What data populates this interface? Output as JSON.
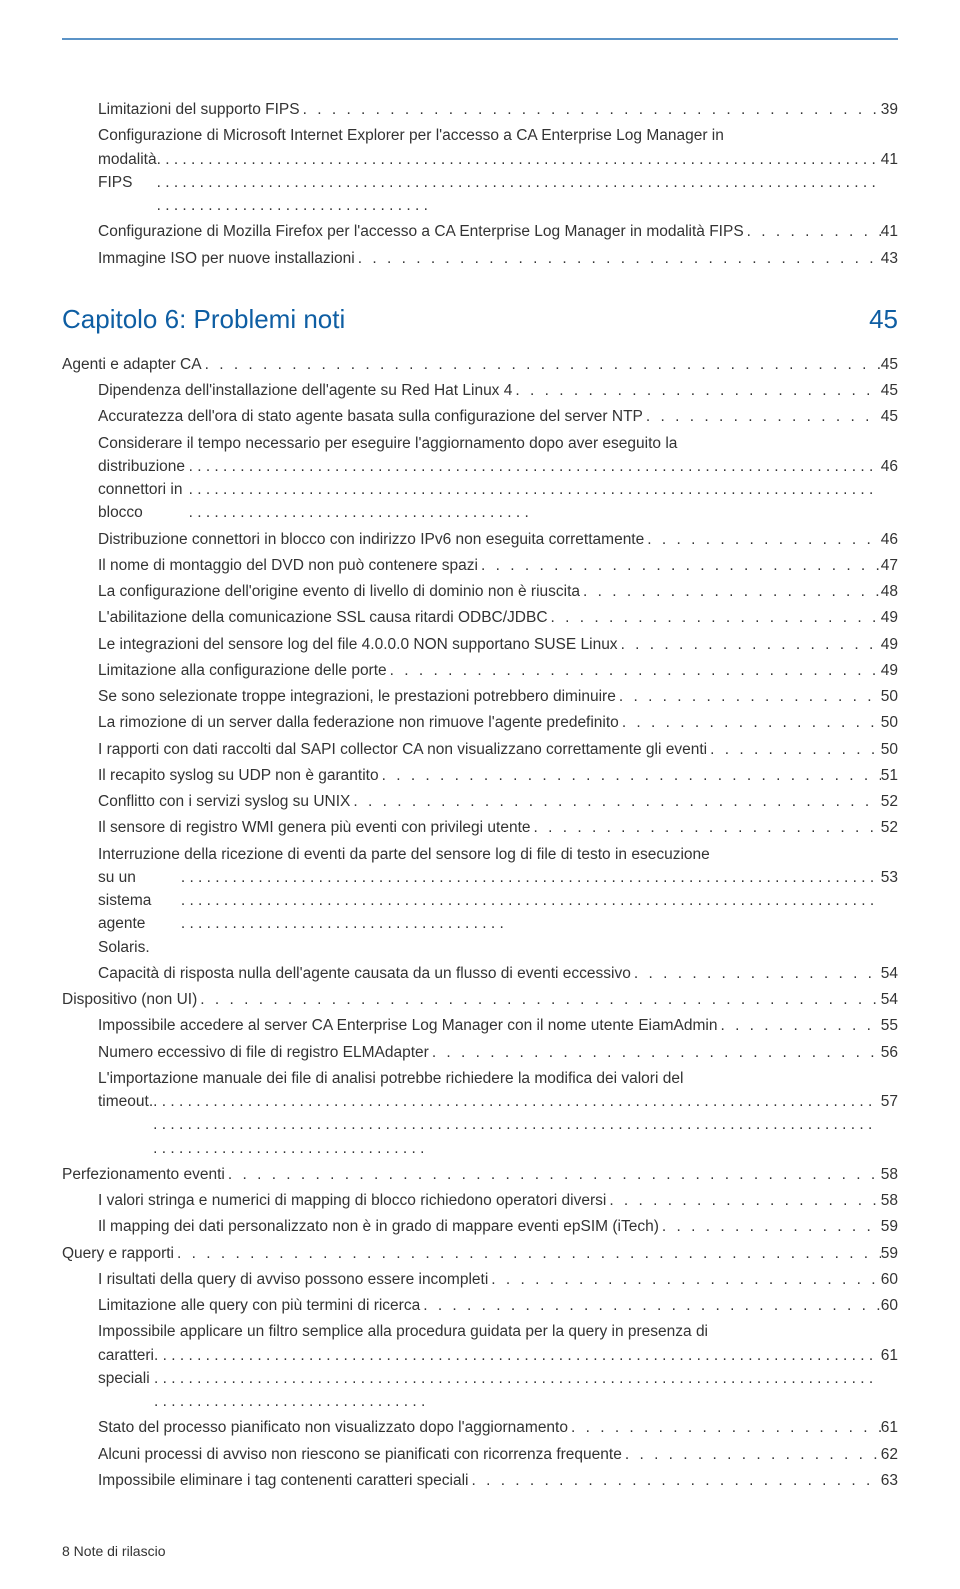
{
  "colors": {
    "topRule": "#5b93c7",
    "chapter": "#0e5ea3",
    "text": "#333333",
    "background": "#ffffff"
  },
  "typography": {
    "body_fontsize_pt": 11.5,
    "chapter_fontsize_pt": 19,
    "footer_fontsize_pt": 10.5,
    "font_family": "Segoe UI / Verdana"
  },
  "preEntries": [
    {
      "level": 2,
      "label": "Limitazioni del supporto FIPS",
      "page": "39"
    },
    {
      "level": 2,
      "wrap": true,
      "line1": "Configurazione di Microsoft Internet Explorer per l'accesso a CA Enterprise Log Manager in",
      "line2": "modalità FIPS",
      "page": "41"
    },
    {
      "level": 2,
      "label": "Configurazione di Mozilla Firefox per l'accesso a CA Enterprise Log Manager in modalità FIPS",
      "page": "41"
    },
    {
      "level": 2,
      "label": "Immagine ISO per nuove installazioni",
      "page": "43"
    }
  ],
  "chapter": {
    "title": "Capitolo 6: Problemi noti",
    "page": "45"
  },
  "entries": [
    {
      "level": 1,
      "label": "Agenti e adapter CA",
      "page": "45"
    },
    {
      "level": 2,
      "label": "Dipendenza dell'installazione dell'agente su Red Hat Linux 4",
      "page": "45"
    },
    {
      "level": 2,
      "label": "Accuratezza dell'ora di stato agente basata sulla configurazione del server NTP",
      "page": "45"
    },
    {
      "level": 2,
      "wrap": true,
      "line1": "Considerare il tempo necessario per eseguire l'aggiornamento dopo aver eseguito la",
      "line2": "distribuzione connettori in blocco",
      "page": "46"
    },
    {
      "level": 2,
      "label": "Distribuzione connettori in blocco con indirizzo IPv6 non eseguita correttamente",
      "page": "46"
    },
    {
      "level": 2,
      "label": "Il nome di montaggio del DVD non può contenere spazi",
      "page": "47"
    },
    {
      "level": 2,
      "label": "La configurazione dell'origine evento di livello di dominio non è riuscita",
      "page": "48"
    },
    {
      "level": 2,
      "label": "L'abilitazione della comunicazione SSL causa ritardi ODBC/JDBC",
      "page": "49"
    },
    {
      "level": 2,
      "label": "Le integrazioni del sensore log del file 4.0.0.0 NON supportano SUSE Linux",
      "page": "49"
    },
    {
      "level": 2,
      "label": "Limitazione alla configurazione delle porte",
      "page": "49"
    },
    {
      "level": 2,
      "label": "Se sono selezionate troppe integrazioni, le prestazioni potrebbero diminuire",
      "page": "50"
    },
    {
      "level": 2,
      "label": "La rimozione di un server dalla federazione non rimuove l'agente predefinito",
      "page": "50"
    },
    {
      "level": 2,
      "label": "I rapporti con dati raccolti dal SAPI collector CA non visualizzano correttamente gli eventi",
      "page": "50"
    },
    {
      "level": 2,
      "label": "Il recapito syslog su UDP non è garantito",
      "page": "51"
    },
    {
      "level": 2,
      "label": "Conflitto con i servizi syslog su UNIX",
      "page": "52"
    },
    {
      "level": 2,
      "label": "Il sensore di registro WMI genera più eventi con privilegi utente",
      "page": "52"
    },
    {
      "level": 2,
      "wrap": true,
      "line1": "Interruzione della ricezione di eventi da parte del sensore log di file di testo in esecuzione",
      "line2": "su un sistema agente Solaris.",
      "page": "53"
    },
    {
      "level": 2,
      "label": "Capacità di risposta nulla dell'agente causata da un flusso di eventi eccessivo",
      "page": "54"
    },
    {
      "level": 1,
      "label": "Dispositivo (non UI)",
      "page": "54"
    },
    {
      "level": 2,
      "label": "Impossibile accedere al server CA Enterprise Log Manager con il nome utente EiamAdmin",
      "page": "55"
    },
    {
      "level": 2,
      "label": "Numero eccessivo di file di registro ELMAdapter",
      "page": "56"
    },
    {
      "level": 2,
      "wrap": true,
      "line1": "L'importazione manuale dei file di analisi potrebbe richiedere la modifica dei valori del",
      "line2": "timeout.",
      "page": "57"
    },
    {
      "level": 1,
      "label": "Perfezionamento eventi",
      "page": "58"
    },
    {
      "level": 2,
      "label": "I valori stringa e numerici di mapping di blocco richiedono operatori diversi",
      "page": "58"
    },
    {
      "level": 2,
      "label": "Il mapping dei dati personalizzato non è in grado di mappare eventi epSIM (iTech)",
      "page": "59"
    },
    {
      "level": 1,
      "label": "Query e rapporti",
      "page": "59"
    },
    {
      "level": 2,
      "label": "I risultati della query di avviso possono essere incompleti",
      "page": "60"
    },
    {
      "level": 2,
      "label": "Limitazione alle query con più termini di ricerca",
      "page": "60"
    },
    {
      "level": 2,
      "wrap": true,
      "line1": "Impossibile applicare un filtro semplice alla procedura guidata per la query in presenza di",
      "line2": "caratteri speciali",
      "page": "61"
    },
    {
      "level": 2,
      "label": "Stato del processo pianificato non visualizzato dopo l'aggiornamento",
      "page": "61"
    },
    {
      "level": 2,
      "label": "Alcuni processi di avviso non riescono se pianificati con ricorrenza frequente",
      "page": "62"
    },
    {
      "level": 2,
      "label": "Impossibile eliminare i tag contenenti caratteri speciali",
      "page": "63"
    }
  ],
  "footer": "8  Note di rilascio"
}
